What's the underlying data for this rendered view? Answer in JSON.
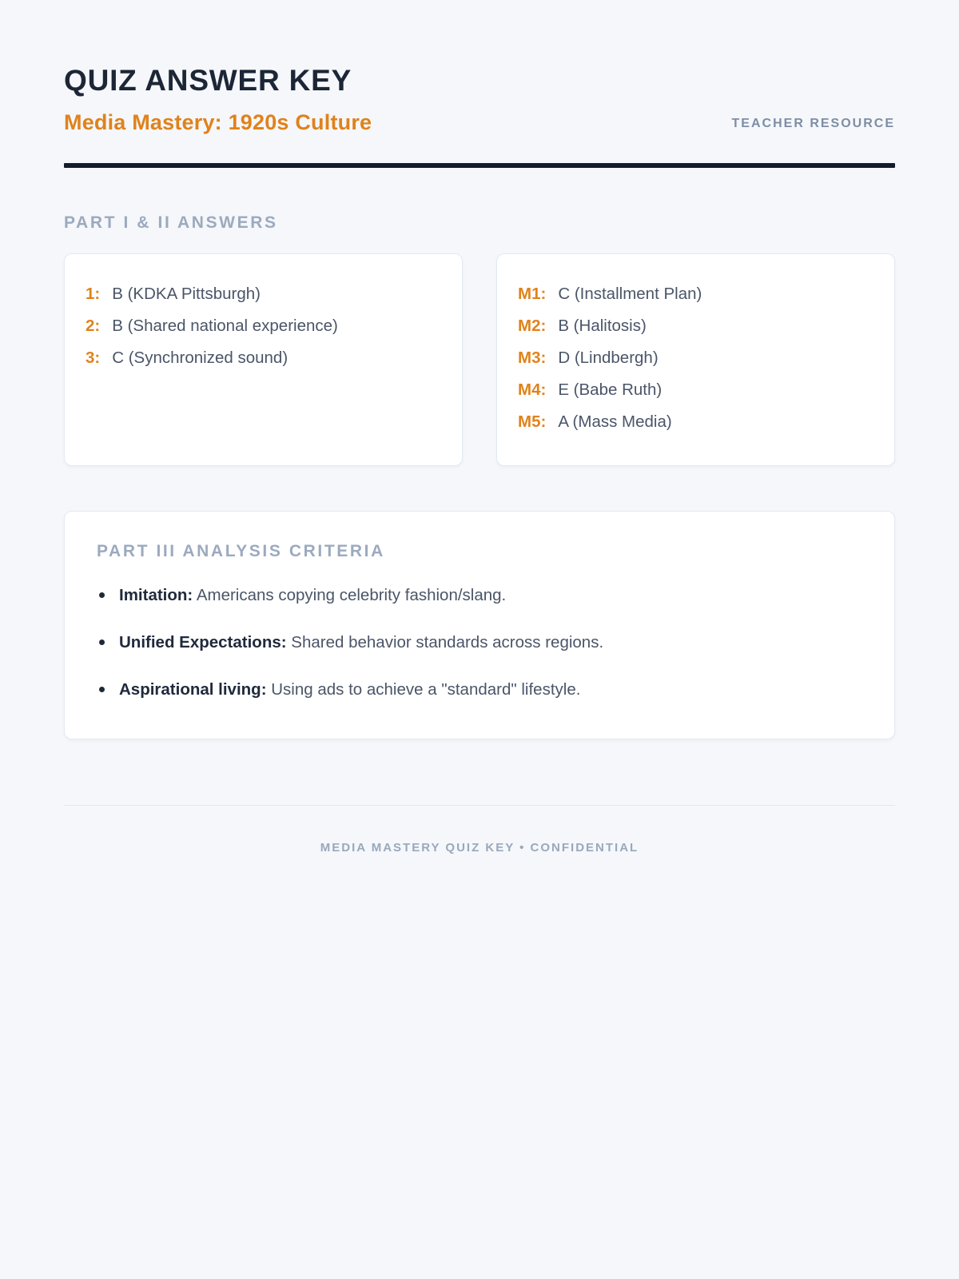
{
  "colors": {
    "background": "#f5f7fa",
    "accent_orange": "#e0821c",
    "dark_navy": "#1d2636",
    "slate_text": "#4a5568",
    "muted_slate": "#9caabf"
  },
  "header": {
    "title": "QUIZ ANSWER KEY",
    "subtitle": "Media Mastery: 1920s Culture",
    "badge": "TEACHER RESOURCE"
  },
  "answers": {
    "heading": "PART I & II ANSWERS",
    "part1": [
      {
        "label": "1:",
        "text": "B (KDKA Pittsburgh)"
      },
      {
        "label": "2:",
        "text": "B (Shared national experience)"
      },
      {
        "label": "3:",
        "text": "C (Synchronized sound)"
      }
    ],
    "part2": [
      {
        "label": "M1:",
        "text": "C (Installment Plan)"
      },
      {
        "label": "M2:",
        "text": "B (Halitosis)"
      },
      {
        "label": "M3:",
        "text": "D (Lindbergh)"
      },
      {
        "label": "M4:",
        "text": "E (Babe Ruth)"
      },
      {
        "label": "M5:",
        "text": "A (Mass Media)"
      }
    ]
  },
  "analysis": {
    "heading": "PART III ANALYSIS CRITERIA",
    "items": [
      {
        "term": "Imitation:",
        "desc": "Americans copying celebrity fashion/slang."
      },
      {
        "term": "Unified Expectations:",
        "desc": "Shared behavior standards across regions."
      },
      {
        "term": "Aspirational living:",
        "desc": "Using ads to achieve a \"standard\" lifestyle."
      }
    ]
  },
  "footer": {
    "text": "MEDIA MASTERY QUIZ KEY • CONFIDENTIAL"
  }
}
